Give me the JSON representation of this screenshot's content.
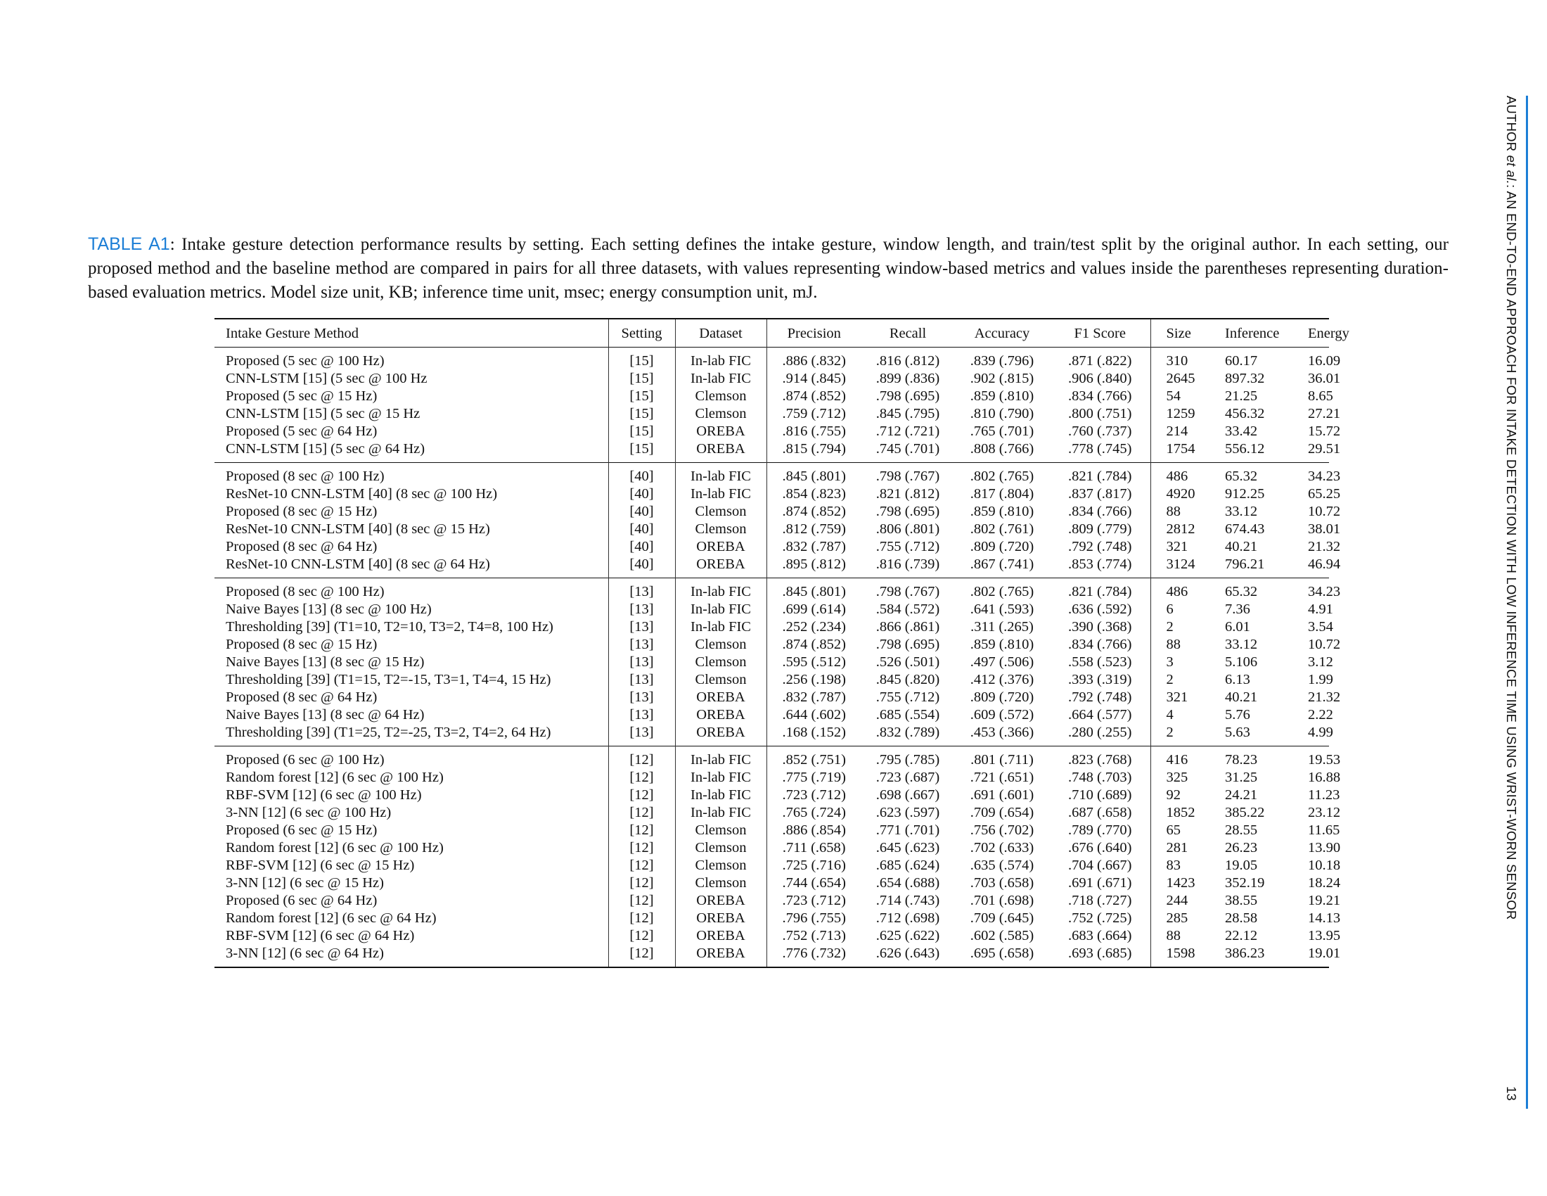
{
  "caption": {
    "label": "TABLE A1",
    "text": ": Intake gesture detection performance results by setting. Each setting defines the intake gesture, window length, and train/test split by the original author. In each setting, our proposed method and the baseline method are compared in pairs for all three datasets, with values representing window-based metrics and values inside the parentheses representing duration-based evaluation metrics. Model size unit, KB; inference time unit, msec; energy consumption unit, mJ."
  },
  "running_head": {
    "pre": "AUTHOR ",
    "etal": "et al.",
    "post": ": AN END-TO-END APPROACH FOR INTAKE DETECTION WITH LOW INFERENCE TIME USING WRIST-WORN SENSOR",
    "page_number": "13"
  },
  "table": {
    "headers": [
      "Intake Gesture Method",
      "Setting",
      "Dataset",
      "Precision",
      "Recall",
      "Accuracy",
      "F1 Score",
      "Size",
      "Inference",
      "Energy"
    ],
    "groups": [
      [
        [
          "Proposed (5 sec @ 100 Hz)",
          "[15]",
          "In-lab FIC",
          ".886 (.832)",
          ".816 (.812)",
          ".839 (.796)",
          ".871 (.822)",
          "310",
          "60.17",
          "16.09"
        ],
        [
          "CNN-LSTM [15] (5 sec @ 100 Hz",
          "[15]",
          "In-lab FIC",
          ".914 (.845)",
          ".899 (.836)",
          ".902 (.815)",
          ".906 (.840)",
          "2645",
          "897.32",
          "36.01"
        ],
        [
          "Proposed (5 sec @ 15 Hz)",
          "[15]",
          "Clemson",
          ".874 (.852)",
          ".798 (.695)",
          ".859 (.810)",
          ".834 (.766)",
          "54",
          "21.25",
          "8.65"
        ],
        [
          "CNN-LSTM [15] (5 sec @ 15 Hz",
          "[15]",
          "Clemson",
          ".759 (.712)",
          ".845 (.795)",
          ".810 (.790)",
          ".800 (.751)",
          "1259",
          "456.32",
          "27.21"
        ],
        [
          "Proposed (5 sec @ 64 Hz)",
          "[15]",
          "OREBA",
          ".816 (.755)",
          ".712 (.721)",
          ".765 (.701)",
          ".760 (.737)",
          "214",
          "33.42",
          "15.72"
        ],
        [
          "CNN-LSTM [15] (5 sec @ 64 Hz)",
          "[15]",
          "OREBA",
          ".815 (.794)",
          ".745 (.701)",
          ".808 (.766)",
          ".778 (.745)",
          "1754",
          "556.12",
          "29.51"
        ]
      ],
      [
        [
          "Proposed (8 sec @ 100 Hz)",
          "[40]",
          "In-lab FIC",
          ".845 (.801)",
          ".798 (.767)",
          ".802 (.765)",
          ".821 (.784)",
          "486",
          "65.32",
          "34.23"
        ],
        [
          "ResNet-10 CNN-LSTM [40] (8 sec @ 100 Hz)",
          "[40]",
          "In-lab FIC",
          ".854 (.823)",
          ".821 (.812)",
          ".817 (.804)",
          ".837 (.817)",
          "4920",
          "912.25",
          "65.25"
        ],
        [
          "Proposed (8 sec @ 15 Hz)",
          "[40]",
          "Clemson",
          ".874 (.852)",
          ".798 (.695)",
          ".859 (.810)",
          ".834 (.766)",
          "88",
          "33.12",
          "10.72"
        ],
        [
          "ResNet-10 CNN-LSTM [40] (8 sec @ 15 Hz)",
          "[40]",
          "Clemson",
          ".812 (.759)",
          ".806 (.801)",
          ".802 (.761)",
          ".809 (.779)",
          "2812",
          "674.43",
          "38.01"
        ],
        [
          "Proposed (8 sec @ 64 Hz)",
          "[40]",
          "OREBA",
          ".832 (.787)",
          ".755 (.712)",
          ".809 (.720)",
          ".792 (.748)",
          "321",
          "40.21",
          "21.32"
        ],
        [
          "ResNet-10 CNN-LSTM [40] (8 sec @ 64 Hz)",
          "[40]",
          "OREBA",
          ".895 (.812)",
          ".816 (.739)",
          ".867 (.741)",
          ".853 (.774)",
          "3124",
          "796.21",
          "46.94"
        ]
      ],
      [
        [
          "Proposed (8 sec @ 100 Hz)",
          "[13]",
          "In-lab FIC",
          ".845 (.801)",
          ".798 (.767)",
          ".802 (.765)",
          ".821 (.784)",
          "486",
          "65.32",
          "34.23"
        ],
        [
          "Naive Bayes [13] (8 sec @ 100 Hz)",
          "[13]",
          "In-lab FIC",
          ".699 (.614)",
          ".584 (.572)",
          ".641 (.593)",
          ".636 (.592)",
          "6",
          "7.36",
          "4.91"
        ],
        [
          "Thresholding [39] (T1=10, T2=10, T3=2, T4=8, 100 Hz)",
          "[13]",
          "In-lab FIC",
          ".252 (.234)",
          ".866 (.861)",
          ".311 (.265)",
          ".390 (.368)",
          "2",
          "6.01",
          "3.54"
        ],
        [
          "Proposed (8 sec @ 15 Hz)",
          "[13]",
          "Clemson",
          ".874 (.852)",
          ".798 (.695)",
          ".859 (.810)",
          ".834 (.766)",
          "88",
          "33.12",
          "10.72"
        ],
        [
          "Naive Bayes [13] (8 sec @ 15 Hz)",
          "[13]",
          "Clemson",
          ".595 (.512)",
          ".526 (.501)",
          ".497 (.506)",
          ".558 (.523)",
          "3",
          "5.106",
          "3.12"
        ],
        [
          "Thresholding [39] (T1=15, T2=-15, T3=1, T4=4, 15 Hz)",
          "[13]",
          "Clemson",
          ".256 (.198)",
          ".845 (.820)",
          ".412 (.376)",
          ".393 (.319)",
          "2",
          "6.13",
          "1.99"
        ],
        [
          "Proposed (8 sec @ 64 Hz)",
          "[13]",
          "OREBA",
          ".832 (.787)",
          ".755 (.712)",
          ".809 (.720)",
          ".792 (.748)",
          "321",
          "40.21",
          "21.32"
        ],
        [
          "Naive Bayes [13] (8 sec @ 64 Hz)",
          "[13]",
          "OREBA",
          ".644 (.602)",
          ".685 (.554)",
          ".609 (.572)",
          ".664 (.577)",
          "4",
          "5.76",
          "2.22"
        ],
        [
          "Thresholding [39] (T1=25, T2=-25, T3=2, T4=2, 64 Hz)",
          "[13]",
          "OREBA",
          ".168 (.152)",
          ".832 (.789)",
          ".453 (.366)",
          ".280 (.255)",
          "2",
          "5.63",
          "4.99"
        ]
      ],
      [
        [
          "Proposed (6 sec @ 100 Hz)",
          "[12]",
          "In-lab FIC",
          ".852 (.751)",
          ".795 (.785)",
          ".801 (.711)",
          ".823 (.768)",
          "416",
          "78.23",
          "19.53"
        ],
        [
          "Random forest [12] (6 sec @ 100 Hz)",
          "[12]",
          "In-lab FIC",
          ".775 (.719)",
          ".723 (.687)",
          ".721 (.651)",
          ".748 (.703)",
          "325",
          "31.25",
          "16.88"
        ],
        [
          "RBF-SVM [12] (6 sec @ 100 Hz)",
          "[12]",
          "In-lab FIC",
          ".723 (.712)",
          ".698 (.667)",
          ".691 (.601)",
          ".710 (.689)",
          "92",
          "24.21",
          "11.23"
        ],
        [
          "3-NN [12] (6 sec @ 100 Hz)",
          "[12]",
          "In-lab FIC",
          ".765 (.724)",
          ".623 (.597)",
          ".709 (.654)",
          ".687 (.658)",
          "1852",
          "385.22",
          "23.12"
        ],
        [
          "Proposed (6 sec @ 15 Hz)",
          "[12]",
          "Clemson",
          ".886 (.854)",
          ".771 (.701)",
          ".756 (.702)",
          ".789 (.770)",
          "65",
          "28.55",
          "11.65"
        ],
        [
          "Random forest [12] (6 sec @ 100 Hz)",
          "[12]",
          "Clemson",
          ".711 (.658)",
          ".645 (.623)",
          ".702 (.633)",
          ".676 (.640)",
          "281",
          "26.23",
          "13.90"
        ],
        [
          "RBF-SVM [12] (6 sec @ 15 Hz)",
          "[12]",
          "Clemson",
          ".725 (.716)",
          ".685 (.624)",
          ".635 (.574)",
          ".704 (.667)",
          "83",
          "19.05",
          "10.18"
        ],
        [
          "3-NN [12] (6 sec @ 15 Hz)",
          "[12]",
          "Clemson",
          ".744 (.654)",
          ".654 (.688)",
          ".703 (.658)",
          ".691 (.671)",
          "1423",
          "352.19",
          "18.24"
        ],
        [
          "Proposed (6 sec @ 64 Hz)",
          "[12]",
          "OREBA",
          ".723 (.712)",
          ".714 (.743)",
          ".701 (.698)",
          ".718 (.727)",
          "244",
          "38.55",
          "19.21"
        ],
        [
          "Random forest [12] (6 sec @ 64 Hz)",
          "[12]",
          "OREBA",
          ".796 (.755)",
          ".712 (.698)",
          ".709 (.645)",
          ".752 (.725)",
          "285",
          "28.58",
          "14.13"
        ],
        [
          "RBF-SVM [12] (6 sec @ 64 Hz)",
          "[12]",
          "OREBA",
          ".752 (.713)",
          ".625 (.622)",
          ".602 (.585)",
          ".683 (.664)",
          "88",
          "22.12",
          "13.95"
        ],
        [
          "3-NN [12] (6 sec @ 64 Hz)",
          "[12]",
          "OREBA",
          ".776 (.732)",
          ".626 (.643)",
          ".695 (.658)",
          ".693 (.685)",
          "1598",
          "386.23",
          "19.01"
        ]
      ]
    ]
  }
}
